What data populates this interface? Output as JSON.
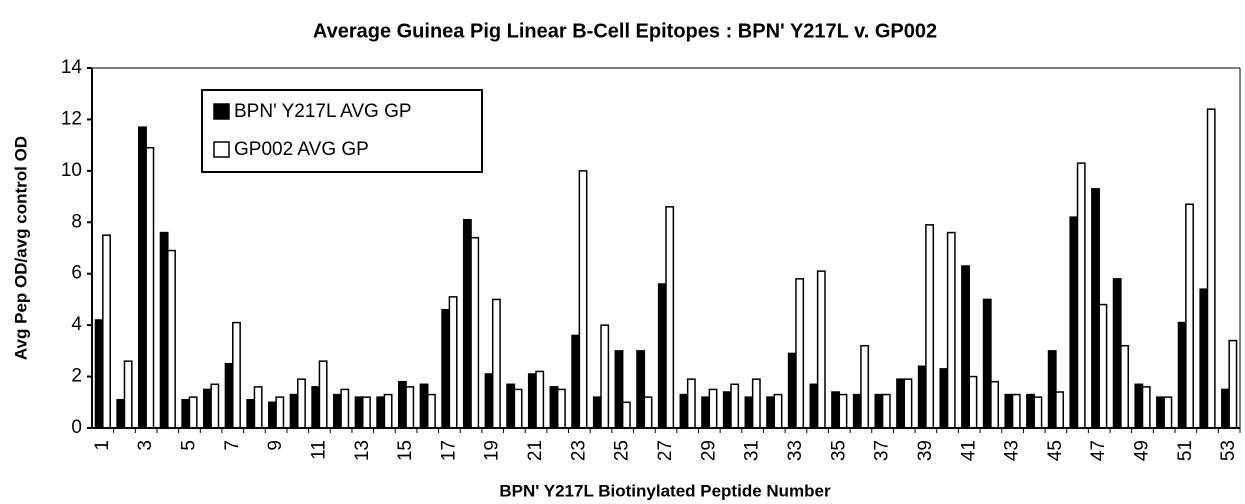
{
  "chart_data": {
    "type": "bar",
    "title": "Average Guinea Pig Linear B-Cell Epitopes : BPN' Y217L v. GP002",
    "x_label": "BPN' Y217L Biotinylated Peptide Number",
    "y_label": "Avg Pep OD/avg control OD",
    "categories": [
      "1",
      null,
      "3",
      null,
      "5",
      null,
      "7",
      null,
      "9",
      null,
      "11",
      null,
      "13",
      null,
      "15",
      null,
      "17",
      null,
      "19",
      null,
      "21",
      null,
      "23",
      null,
      "25",
      null,
      "27",
      null,
      "29",
      null,
      "31",
      null,
      "33",
      null,
      "35",
      null,
      "37",
      null,
      "39",
      null,
      "41",
      null,
      "43",
      null,
      "45",
      null,
      "47",
      null,
      "49",
      null,
      "51",
      null,
      "53"
    ],
    "series": [
      {
        "name": "BPN' Y217L AVG GP",
        "color": "#000000",
        "values": [
          4.2,
          1.1,
          11.7,
          7.6,
          1.1,
          1.5,
          2.5,
          1.1,
          1.0,
          1.3,
          1.6,
          1.3,
          1.2,
          1.2,
          1.8,
          1.7,
          4.6,
          8.1,
          2.1,
          1.7,
          2.1,
          1.6,
          3.6,
          1.2,
          3.0,
          3.0,
          5.6,
          1.3,
          1.2,
          1.4,
          1.2,
          1.2,
          2.9,
          1.7,
          1.4,
          1.3,
          1.3,
          1.9,
          2.4,
          2.3,
          6.3,
          5.0,
          1.3,
          1.3,
          3.0,
          8.2,
          9.3,
          5.8,
          1.7,
          1.2,
          4.1,
          5.4,
          1.5
        ]
      },
      {
        "name": "GP002 AVG GP",
        "color": "#ffffff",
        "values": [
          7.5,
          2.6,
          10.9,
          6.9,
          1.2,
          1.7,
          4.1,
          1.6,
          1.2,
          1.9,
          2.6,
          1.5,
          1.2,
          1.3,
          1.6,
          1.3,
          5.1,
          7.4,
          5.0,
          1.5,
          2.2,
          1.5,
          10.0,
          4.0,
          1.0,
          1.2,
          8.6,
          1.9,
          1.5,
          1.7,
          1.9,
          1.3,
          5.8,
          6.1,
          1.3,
          3.2,
          1.3,
          1.9,
          7.9,
          7.6,
          2.0,
          1.8,
          1.3,
          1.2,
          1.4,
          10.3,
          4.8,
          3.2,
          1.6,
          1.2,
          8.7,
          12.4,
          3.4
        ]
      }
    ],
    "ylim": [
      0,
      14
    ],
    "yticks": [
      0,
      2,
      4,
      6,
      8,
      10,
      12,
      14
    ],
    "legend": "upper left"
  }
}
